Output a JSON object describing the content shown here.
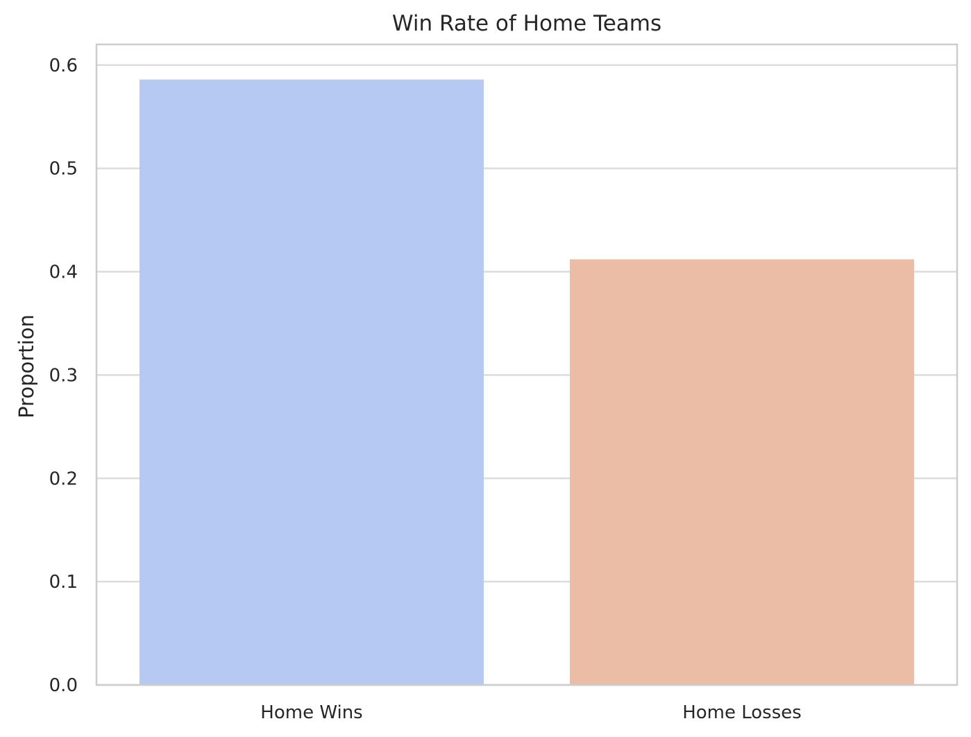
{
  "chart_data": {
    "type": "bar",
    "title": "Win Rate of Home Teams",
    "xlabel": "",
    "ylabel": "Proportion",
    "categories": [
      "Home Wins",
      "Home Losses"
    ],
    "values": [
      0.586,
      0.412
    ],
    "ylim": [
      0,
      0.62
    ],
    "yticks": [
      0.0,
      0.1,
      0.2,
      0.3,
      0.4,
      0.5,
      0.6
    ],
    "ytick_labels": [
      "0.0",
      "0.1",
      "0.2",
      "0.3",
      "0.4",
      "0.5",
      "0.6"
    ],
    "colors": [
      "#b5c9f2",
      "#ebbca6"
    ],
    "grid": "horizontal",
    "legend": "none"
  }
}
